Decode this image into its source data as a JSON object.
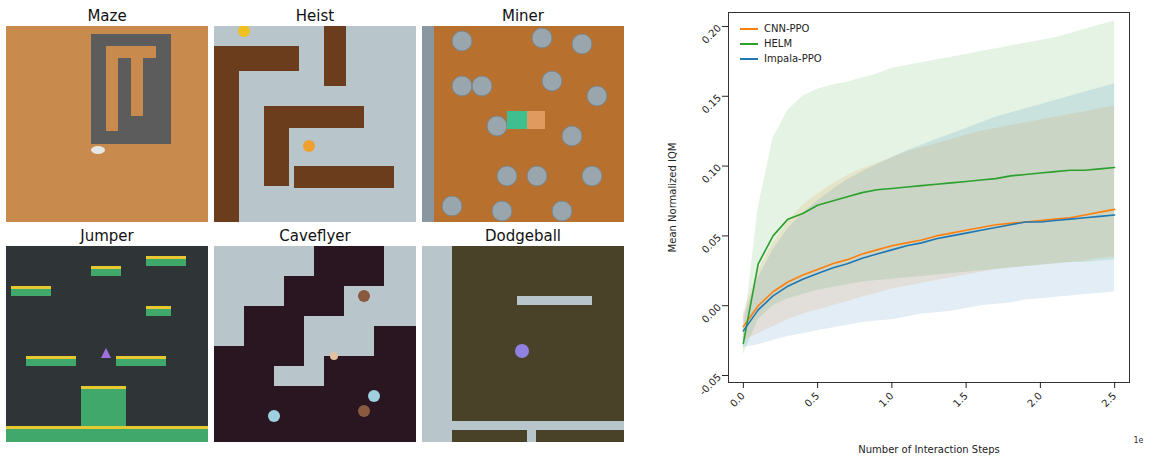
{
  "screenshots": {
    "titles": [
      "Maze",
      "Heist",
      "Miner",
      "Jumper",
      "Caveflyer",
      "Dodgeball"
    ]
  },
  "chart_data": {
    "type": "line",
    "x_label": "Number of Interaction Steps",
    "y_label": "Mean Normalized IQM",
    "annotations": [
      "1e"
    ],
    "x": [
      0.0,
      0.1,
      0.2,
      0.3,
      0.4,
      0.5,
      0.6,
      0.7,
      0.8,
      0.9,
      1.0,
      1.1,
      1.2,
      1.3,
      1.4,
      1.5,
      1.6,
      1.7,
      1.8,
      1.9,
      2.0,
      2.1,
      2.2,
      2.3,
      2.4,
      2.5
    ],
    "xlim": [
      -0.1,
      2.6
    ],
    "xticks": [
      {
        "value": 0,
        "label": "0.0"
      },
      0.5,
      {
        "value": 1,
        "label": "1.0"
      },
      1.5,
      {
        "value": 2,
        "label": "2.0"
      },
      2.5
    ],
    "ylim": [
      -0.055,
      0.21
    ],
    "yticks": [
      -0.05,
      {
        "value": 0,
        "label": "0.00"
      },
      0.05,
      {
        "value": 0.1,
        "label": "0.10"
      },
      0.15,
      {
        "value": 0.2,
        "label": "0.20"
      }
    ],
    "grid": false,
    "legend": "upper left",
    "series": [
      {
        "name": "CNN-PPO",
        "color": "#ff7f0e",
        "values": [
          -0.015,
          0.0,
          0.01,
          0.017,
          0.022,
          0.026,
          0.03,
          0.033,
          0.037,
          0.04,
          0.043,
          0.045,
          0.047,
          0.05,
          0.052,
          0.054,
          0.056,
          0.058,
          0.059,
          0.06,
          0.061,
          0.062,
          0.063,
          0.065,
          0.067,
          0.069
        ],
        "lower": [
          -0.025,
          -0.02,
          -0.015,
          -0.01,
          -0.006,
          -0.003,
          0.0,
          0.003,
          0.006,
          0.009,
          0.012,
          0.014,
          0.016,
          0.018,
          0.02,
          0.022,
          0.024,
          0.026,
          0.027,
          0.028,
          0.029,
          0.03,
          0.031,
          0.032,
          0.034,
          0.035
        ],
        "upper": [
          -0.005,
          0.025,
          0.045,
          0.06,
          0.072,
          0.08,
          0.087,
          0.093,
          0.098,
          0.102,
          0.106,
          0.11,
          0.113,
          0.116,
          0.119,
          0.122,
          0.125,
          0.127,
          0.129,
          0.131,
          0.133,
          0.135,
          0.137,
          0.139,
          0.141,
          0.143
        ]
      },
      {
        "name": "HELM",
        "color": "#2ca02c",
        "values": [
          -0.027,
          0.03,
          0.05,
          0.062,
          0.066,
          0.072,
          0.075,
          0.078,
          0.081,
          0.083,
          0.084,
          0.085,
          0.086,
          0.087,
          0.088,
          0.089,
          0.09,
          0.091,
          0.093,
          0.094,
          0.095,
          0.096,
          0.097,
          0.097,
          0.098,
          0.099
        ],
        "lower": [
          -0.035,
          -0.01,
          0.0,
          0.005,
          0.008,
          0.011,
          0.013,
          0.015,
          0.017,
          0.018,
          0.019,
          0.02,
          0.021,
          0.022,
          0.023,
          0.024,
          0.025,
          0.026,
          0.027,
          0.028,
          0.029,
          0.03,
          0.031,
          0.031,
          0.032,
          0.033
        ],
        "upper": [
          -0.02,
          0.07,
          0.12,
          0.14,
          0.15,
          0.155,
          0.158,
          0.16,
          0.163,
          0.166,
          0.17,
          0.172,
          0.174,
          0.176,
          0.178,
          0.18,
          0.182,
          0.184,
          0.186,
          0.188,
          0.19,
          0.192,
          0.195,
          0.198,
          0.201,
          0.204
        ]
      },
      {
        "name": "Impala-PPO",
        "color": "#1f77b4",
        "values": [
          -0.018,
          -0.003,
          0.007,
          0.014,
          0.019,
          0.023,
          0.027,
          0.03,
          0.034,
          0.037,
          0.04,
          0.043,
          0.045,
          0.048,
          0.05,
          0.052,
          0.054,
          0.056,
          0.058,
          0.06,
          0.06,
          0.061,
          0.062,
          0.063,
          0.064,
          0.065
        ],
        "lower": [
          -0.03,
          -0.028,
          -0.025,
          -0.022,
          -0.02,
          -0.018,
          -0.016,
          -0.014,
          -0.012,
          -0.011,
          -0.01,
          -0.008,
          -0.006,
          -0.005,
          -0.004,
          -0.002,
          0.0,
          0.001,
          0.002,
          0.004,
          0.005,
          0.006,
          0.007,
          0.008,
          0.009,
          0.01
        ],
        "upper": [
          -0.008,
          0.02,
          0.04,
          0.055,
          0.066,
          0.075,
          0.083,
          0.09,
          0.096,
          0.101,
          0.106,
          0.111,
          0.115,
          0.119,
          0.123,
          0.127,
          0.131,
          0.135,
          0.138,
          0.141,
          0.144,
          0.147,
          0.15,
          0.153,
          0.156,
          0.159
        ]
      }
    ]
  }
}
